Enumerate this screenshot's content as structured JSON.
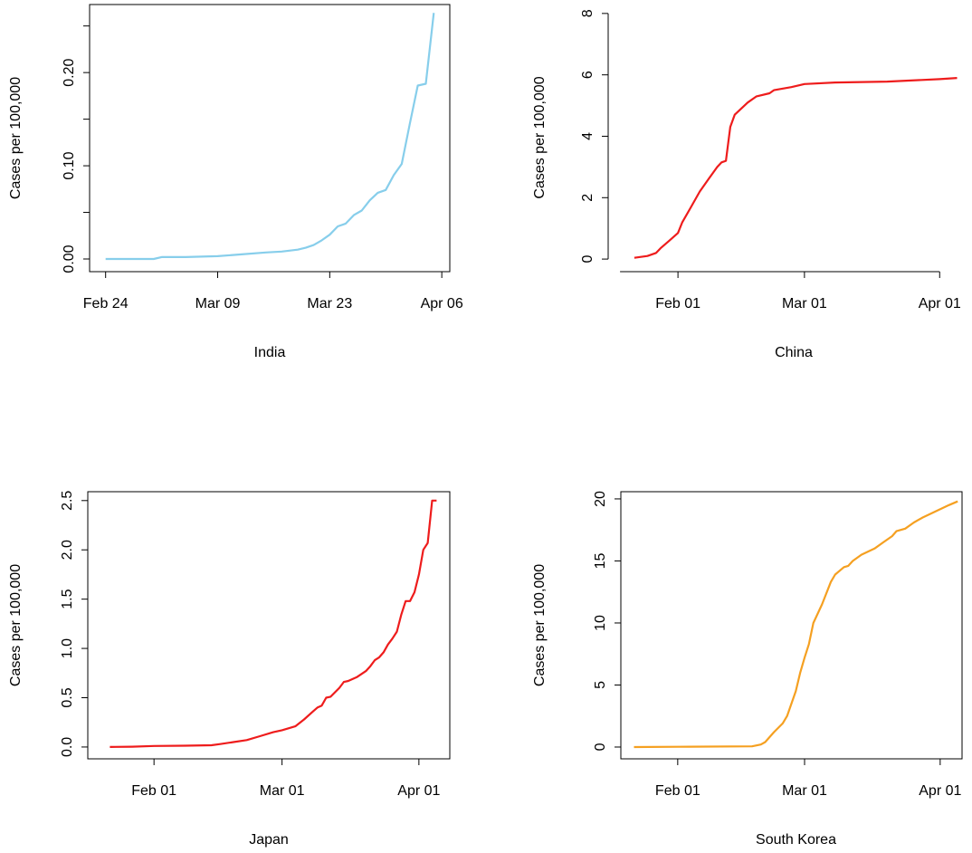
{
  "chart_data": [
    {
      "type": "line",
      "xlabel": "India",
      "ylabel": "Cases per 100,000",
      "color": "#87ceeb",
      "box": true,
      "x": [
        "Feb 24",
        "Feb 27",
        "Mar 01",
        "Mar 02",
        "Mar 05",
        "Mar 09",
        "Mar 12",
        "Mar 15",
        "Mar 17",
        "Mar 19",
        "Mar 20",
        "Mar 21",
        "Mar 22",
        "Mar 23",
        "Mar 24",
        "Mar 25",
        "Mar 26",
        "Mar 27",
        "Mar 28",
        "Mar 29",
        "Mar 30",
        "Mar 31",
        "Apr 01",
        "Apr 02",
        "Apr 03",
        "Apr 04",
        "Apr 05"
      ],
      "values": [
        0,
        0,
        0,
        0.002,
        0.002,
        0.003,
        0.005,
        0.007,
        0.008,
        0.01,
        0.012,
        0.015,
        0.02,
        0.026,
        0.035,
        0.038,
        0.047,
        0.052,
        0.063,
        0.071,
        0.074,
        0.09,
        0.102,
        0.145,
        0.186,
        0.188,
        0.264
      ],
      "xlim": [
        "Feb 22",
        "Apr 07"
      ],
      "xticks": [
        "Feb 24",
        "Mar 09",
        "Mar 23",
        "Apr 06"
      ],
      "ylim": [
        -0.0136,
        0.273
      ],
      "yticks": [
        {
          "value": 0,
          "label": "0.00"
        },
        {
          "value": 0.1,
          "label": "0.10"
        },
        {
          "value": 0.2,
          "label": "0.20"
        }
      ],
      "yminor": [
        0.05,
        0.15,
        0.25
      ]
    },
    {
      "type": "line",
      "xlabel": "China",
      "ylabel": "Cases per 100,000",
      "color": "#ee1c1c",
      "box": false,
      "x": [
        "Jan 22",
        "Jan 25",
        "Jan 27",
        "Jan 28",
        "Jan 30",
        "Feb 01",
        "Feb 02",
        "Feb 04",
        "Feb 06",
        "Feb 08",
        "Feb 10",
        "Feb 11",
        "Feb 12",
        "Feb 13",
        "Feb 14",
        "Feb 17",
        "Feb 19",
        "Feb 22",
        "Feb 23",
        "Feb 27",
        "Mar 01",
        "Mar 08",
        "Mar 20",
        "Apr 01",
        "Apr 05"
      ],
      "values": [
        0.04,
        0.1,
        0.2,
        0.35,
        0.6,
        0.85,
        1.2,
        1.7,
        2.2,
        2.6,
        3.0,
        3.15,
        3.2,
        4.3,
        4.7,
        5.1,
        5.3,
        5.4,
        5.5,
        5.6,
        5.7,
        5.75,
        5.78,
        5.86,
        5.9
      ],
      "xlim": [
        "Jan 16",
        "Apr 08"
      ],
      "xticks": [
        "Feb 01",
        "Mar 01",
        "Apr 01"
      ],
      "ylim": [
        -0.41,
        8.32
      ],
      "yticks": [
        0,
        2,
        4,
        6,
        8
      ]
    },
    {
      "type": "line",
      "xlabel": "Japan",
      "ylabel": "Cases per 100,000",
      "color": "#ee1c1c",
      "box": true,
      "x": [
        "Jan 22",
        "Jan 27",
        "Feb 01",
        "Feb 08",
        "Feb 14",
        "Feb 16",
        "Feb 19",
        "Feb 22",
        "Feb 25",
        "Feb 28",
        "Mar 01",
        "Mar 04",
        "Mar 06",
        "Mar 08",
        "Mar 09",
        "Mar 10",
        "Mar 11",
        "Mar 12",
        "Mar 14",
        "Mar 15",
        "Mar 16",
        "Mar 18",
        "Mar 20",
        "Mar 21",
        "Mar 22",
        "Mar 23",
        "Mar 24",
        "Mar 25",
        "Mar 26",
        "Mar 27",
        "Mar 28",
        "Mar 29",
        "Mar 30",
        "Mar 31",
        "Apr 01",
        "Apr 02",
        "Apr 03",
        "Apr 04",
        "Apr 05"
      ],
      "values": [
        0,
        0.003,
        0.01,
        0.013,
        0.018,
        0.03,
        0.05,
        0.07,
        0.11,
        0.15,
        0.17,
        0.21,
        0.28,
        0.36,
        0.4,
        0.42,
        0.5,
        0.51,
        0.6,
        0.66,
        0.67,
        0.71,
        0.77,
        0.82,
        0.88,
        0.91,
        0.96,
        1.04,
        1.1,
        1.17,
        1.34,
        1.48,
        1.48,
        1.57,
        1.75,
        2.0,
        2.07,
        2.5,
        2.5
      ],
      "xlim": [
        "Jan 17",
        "Apr 08"
      ],
      "xticks": [
        "Feb 01",
        "Mar 01",
        "Apr 01"
      ],
      "ylim": [
        -0.12,
        2.59
      ],
      "yticks": [
        {
          "value": 0,
          "label": "0.0"
        },
        {
          "value": 0.5,
          "label": "0.5"
        },
        {
          "value": 1,
          "label": "1.0"
        },
        {
          "value": 1.5,
          "label": "1.5"
        },
        {
          "value": 2,
          "label": "2.0"
        },
        {
          "value": 2.5,
          "label": "2.5"
        }
      ]
    },
    {
      "type": "line",
      "xlabel": "South Korea",
      "ylabel": "Cases per 100,000",
      "color": "#f5a021",
      "box": true,
      "x": [
        "Jan 22",
        "Feb 01",
        "Feb 18",
        "Feb 20",
        "Feb 21",
        "Feb 23",
        "Feb 25",
        "Feb 26",
        "Feb 27",
        "Feb 28",
        "Feb 29",
        "Mar 01",
        "Mar 02",
        "Mar 03",
        "Mar 05",
        "Mar 07",
        "Mar 08",
        "Mar 10",
        "Mar 11",
        "Mar 12",
        "Mar 14",
        "Mar 17",
        "Mar 19",
        "Mar 21",
        "Mar 22",
        "Mar 24",
        "Mar 26",
        "Mar 28",
        "Mar 31",
        "Apr 03",
        "Apr 05"
      ],
      "values": [
        0,
        0.02,
        0.06,
        0.2,
        0.4,
        1.2,
        1.9,
        2.5,
        3.5,
        4.5,
        6.0,
        7.2,
        8.3,
        10.0,
        11.5,
        13.3,
        13.9,
        14.5,
        14.6,
        15.0,
        15.5,
        16.0,
        16.5,
        17.0,
        17.4,
        17.6,
        18.1,
        18.5,
        19.0,
        19.5,
        19.8
      ],
      "xlim": [
        "Jan 19",
        "Apr 06"
      ],
      "xticks": [
        "Feb 01",
        "Mar 01",
        "Apr 01"
      ],
      "ylim": [
        -0.95,
        20.58
      ],
      "yticks": [
        0,
        5,
        10,
        15,
        20
      ]
    }
  ]
}
